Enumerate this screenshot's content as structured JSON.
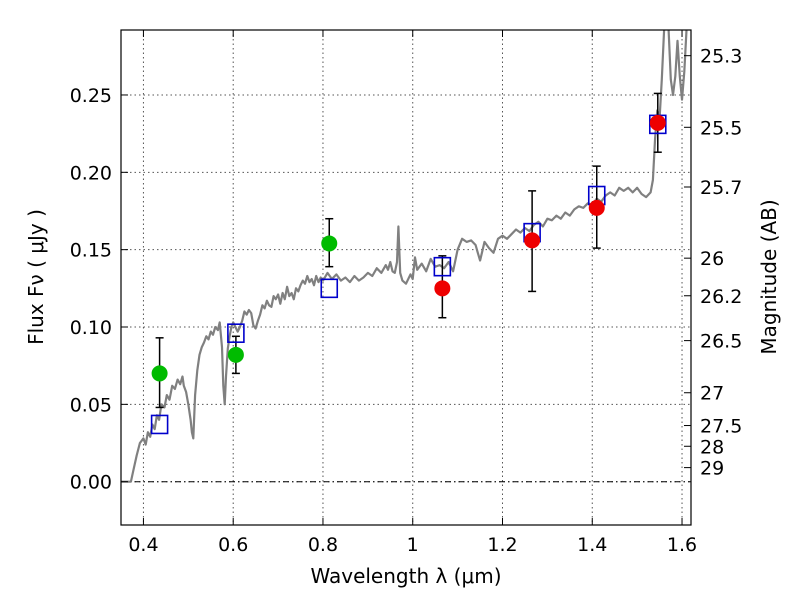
{
  "chart_data": {
    "type": "scatter",
    "title": "",
    "xlabel": "Wavelength  λ (μm)",
    "ylabel": "Flux  Fν  ( μJy )",
    "y2label": "Magnitude (AB)",
    "xlim": [
      0.35,
      1.62
    ],
    "ylim": [
      -0.028,
      0.292
    ],
    "xticks": [
      0.4,
      0.6,
      0.8,
      1.0,
      1.2,
      1.4,
      1.6
    ],
    "xtick_labels": [
      "0.4",
      "0.6",
      "0.8",
      "1",
      "1.2",
      "1.4",
      "1.6"
    ],
    "yticks": [
      0.0,
      0.05,
      0.1,
      0.15,
      0.2,
      0.25
    ],
    "ytick_labels": [
      "0.00",
      "0.05",
      "0.10",
      "0.15",
      "0.20",
      "0.25"
    ],
    "grid": true,
    "zero_line": true,
    "right_axis_ticks": [
      {
        "label": "25.3",
        "flux": 0.2754
      },
      {
        "label": "25.5",
        "flux": 0.2291
      },
      {
        "label": "25.7",
        "flux": 0.1905
      },
      {
        "label": "26",
        "flux": 0.1445
      },
      {
        "label": "26.2",
        "flux": 0.1202
      },
      {
        "label": "26.5",
        "flux": 0.0912
      },
      {
        "label": "27",
        "flux": 0.0575
      },
      {
        "label": "27.5",
        "flux": 0.0363
      },
      {
        "label": "28",
        "flux": 0.0229
      },
      {
        "label": "29",
        "flux": 0.0091
      }
    ],
    "colors": {
      "model": "#808080",
      "green_points": "#00bb00",
      "red_points": "#ee0000",
      "model_boxes": "#0000cc",
      "errorbars": "#000000",
      "grid": "#555555"
    },
    "series": [
      {
        "kind": "line",
        "color": "#808080",
        "points": [
          [
            0.35,
            0.0
          ],
          [
            0.372,
            0.0
          ],
          [
            0.378,
            0.008
          ],
          [
            0.385,
            0.017
          ],
          [
            0.392,
            0.025
          ],
          [
            0.4,
            0.028
          ],
          [
            0.405,
            0.024
          ],
          [
            0.41,
            0.032
          ],
          [
            0.415,
            0.029
          ],
          [
            0.42,
            0.037
          ],
          [
            0.425,
            0.034
          ],
          [
            0.43,
            0.043
          ],
          [
            0.435,
            0.04
          ],
          [
            0.44,
            0.05
          ],
          [
            0.447,
            0.048
          ],
          [
            0.452,
            0.056
          ],
          [
            0.458,
            0.053
          ],
          [
            0.464,
            0.062
          ],
          [
            0.47,
            0.06
          ],
          [
            0.476,
            0.066
          ],
          [
            0.482,
            0.063
          ],
          [
            0.487,
            0.068
          ],
          [
            0.49,
            0.062
          ],
          [
            0.495,
            0.058
          ],
          [
            0.5,
            0.05
          ],
          [
            0.505,
            0.04
          ],
          [
            0.508,
            0.032
          ],
          [
            0.511,
            0.028
          ],
          [
            0.515,
            0.056
          ],
          [
            0.52,
            0.072
          ],
          [
            0.525,
            0.082
          ],
          [
            0.53,
            0.087
          ],
          [
            0.535,
            0.09
          ],
          [
            0.54,
            0.094
          ],
          [
            0.545,
            0.092
          ],
          [
            0.55,
            0.097
          ],
          [
            0.555,
            0.095
          ],
          [
            0.56,
            0.1
          ],
          [
            0.566,
            0.098
          ],
          [
            0.57,
            0.103
          ],
          [
            0.575,
            0.087
          ],
          [
            0.578,
            0.062
          ],
          [
            0.581,
            0.05
          ],
          [
            0.584,
            0.068
          ],
          [
            0.588,
            0.086
          ],
          [
            0.592,
            0.094
          ],
          [
            0.596,
            0.1
          ],
          [
            0.6,
            0.103
          ],
          [
            0.605,
            0.1
          ],
          [
            0.61,
            0.097
          ],
          [
            0.615,
            0.1
          ],
          [
            0.62,
            0.104
          ],
          [
            0.625,
            0.11
          ],
          [
            0.63,
            0.108
          ],
          [
            0.635,
            0.111
          ],
          [
            0.64,
            0.109
          ],
          [
            0.645,
            0.101
          ],
          [
            0.65,
            0.099
          ],
          [
            0.655,
            0.104
          ],
          [
            0.66,
            0.108
          ],
          [
            0.665,
            0.114
          ],
          [
            0.67,
            0.112
          ],
          [
            0.675,
            0.117
          ],
          [
            0.68,
            0.114
          ],
          [
            0.685,
            0.113
          ],
          [
            0.69,
            0.12
          ],
          [
            0.695,
            0.118
          ],
          [
            0.7,
            0.121
          ],
          [
            0.705,
            0.115
          ],
          [
            0.71,
            0.122
          ],
          [
            0.715,
            0.118
          ],
          [
            0.72,
            0.126
          ],
          [
            0.725,
            0.12
          ],
          [
            0.73,
            0.122
          ],
          [
            0.735,
            0.118
          ],
          [
            0.74,
            0.125
          ],
          [
            0.745,
            0.123
          ],
          [
            0.75,
            0.127
          ],
          [
            0.755,
            0.13
          ],
          [
            0.76,
            0.128
          ],
          [
            0.765,
            0.133
          ],
          [
            0.77,
            0.129
          ],
          [
            0.775,
            0.131
          ],
          [
            0.78,
            0.127
          ],
          [
            0.785,
            0.133
          ],
          [
            0.79,
            0.129
          ],
          [
            0.795,
            0.132
          ],
          [
            0.8,
            0.13
          ],
          [
            0.81,
            0.135
          ],
          [
            0.82,
            0.131
          ],
          [
            0.83,
            0.134
          ],
          [
            0.84,
            0.13
          ],
          [
            0.85,
            0.132
          ],
          [
            0.86,
            0.129
          ],
          [
            0.87,
            0.133
          ],
          [
            0.88,
            0.13
          ],
          [
            0.89,
            0.132
          ],
          [
            0.9,
            0.135
          ],
          [
            0.91,
            0.133
          ],
          [
            0.92,
            0.138
          ],
          [
            0.93,
            0.135
          ],
          [
            0.94,
            0.14
          ],
          [
            0.945,
            0.137
          ],
          [
            0.95,
            0.142
          ],
          [
            0.955,
            0.136
          ],
          [
            0.96,
            0.135
          ],
          [
            0.965,
            0.142
          ],
          [
            0.968,
            0.165
          ],
          [
            0.972,
            0.135
          ],
          [
            0.977,
            0.13
          ],
          [
            0.985,
            0.128
          ],
          [
            0.995,
            0.134
          ],
          [
            1.0,
            0.131
          ],
          [
            1.005,
            0.145
          ],
          [
            1.01,
            0.137
          ],
          [
            1.02,
            0.141
          ],
          [
            1.03,
            0.136
          ],
          [
            1.04,
            0.144
          ],
          [
            1.05,
            0.139
          ],
          [
            1.06,
            0.14
          ],
          [
            1.07,
            0.138
          ],
          [
            1.08,
            0.142
          ],
          [
            1.09,
            0.136
          ],
          [
            1.1,
            0.15
          ],
          [
            1.11,
            0.157
          ],
          [
            1.12,
            0.155
          ],
          [
            1.13,
            0.156
          ],
          [
            1.14,
            0.153
          ],
          [
            1.145,
            0.148
          ],
          [
            1.15,
            0.143
          ],
          [
            1.155,
            0.149
          ],
          [
            1.16,
            0.155
          ],
          [
            1.17,
            0.151
          ],
          [
            1.18,
            0.148
          ],
          [
            1.19,
            0.157
          ],
          [
            1.2,
            0.159
          ],
          [
            1.21,
            0.157
          ],
          [
            1.22,
            0.16
          ],
          [
            1.23,
            0.163
          ],
          [
            1.24,
            0.161
          ],
          [
            1.25,
            0.164
          ],
          [
            1.26,
            0.162
          ],
          [
            1.27,
            0.166
          ],
          [
            1.28,
            0.168
          ],
          [
            1.29,
            0.165
          ],
          [
            1.3,
            0.17
          ],
          [
            1.31,
            0.169
          ],
          [
            1.32,
            0.172
          ],
          [
            1.33,
            0.17
          ],
          [
            1.34,
            0.174
          ],
          [
            1.35,
            0.172
          ],
          [
            1.36,
            0.176
          ],
          [
            1.37,
            0.178
          ],
          [
            1.38,
            0.177
          ],
          [
            1.39,
            0.18
          ],
          [
            1.4,
            0.179
          ],
          [
            1.41,
            0.183
          ],
          [
            1.42,
            0.181
          ],
          [
            1.43,
            0.185
          ],
          [
            1.44,
            0.187
          ],
          [
            1.45,
            0.185
          ],
          [
            1.46,
            0.19
          ],
          [
            1.47,
            0.188
          ],
          [
            1.48,
            0.19
          ],
          [
            1.49,
            0.187
          ],
          [
            1.5,
            0.19
          ],
          [
            1.51,
            0.186
          ],
          [
            1.52,
            0.184
          ],
          [
            1.53,
            0.187
          ],
          [
            1.535,
            0.195
          ],
          [
            1.54,
            0.222
          ],
          [
            1.545,
            0.24
          ],
          [
            1.55,
            0.235
          ],
          [
            1.555,
            0.26
          ],
          [
            1.56,
            0.292
          ]
        ]
      },
      {
        "kind": "line",
        "color": "#808080",
        "points": [
          [
            1.57,
            0.292
          ],
          [
            1.575,
            0.26
          ],
          [
            1.58,
            0.25
          ],
          [
            1.585,
            0.262
          ],
          [
            1.59,
            0.285
          ],
          [
            1.595,
            0.262
          ],
          [
            1.6,
            0.247
          ],
          [
            1.605,
            0.265
          ],
          [
            1.61,
            0.292
          ]
        ]
      },
      {
        "kind": "errorbar",
        "color": "#000000",
        "points": [
          {
            "x": 0.436,
            "lo": 0.048,
            "hi": 0.093
          },
          {
            "x": 0.606,
            "lo": 0.07,
            "hi": 0.094
          },
          {
            "x": 0.814,
            "lo": 0.139,
            "hi": 0.17
          },
          {
            "x": 1.066,
            "lo": 0.106,
            "hi": 0.146
          },
          {
            "x": 1.266,
            "lo": 0.123,
            "hi": 0.188
          },
          {
            "x": 1.41,
            "lo": 0.151,
            "hi": 0.204
          },
          {
            "x": 1.546,
            "lo": 0.213,
            "hi": 0.251
          }
        ]
      },
      {
        "kind": "boxes",
        "color": "#0000cc",
        "points": [
          [
            0.436,
            0.037
          ],
          [
            0.606,
            0.096
          ],
          [
            0.814,
            0.125
          ],
          [
            1.066,
            0.139
          ],
          [
            1.266,
            0.161
          ],
          [
            1.41,
            0.185
          ],
          [
            1.546,
            0.231
          ]
        ]
      },
      {
        "kind": "points",
        "color": "#00bb00",
        "points": [
          [
            0.436,
            0.07
          ],
          [
            0.606,
            0.082
          ],
          [
            0.814,
            0.154
          ]
        ]
      },
      {
        "kind": "points",
        "color": "#ee0000",
        "points": [
          [
            1.066,
            0.125
          ],
          [
            1.266,
            0.156
          ],
          [
            1.41,
            0.177
          ],
          [
            1.546,
            0.232
          ]
        ]
      }
    ]
  }
}
